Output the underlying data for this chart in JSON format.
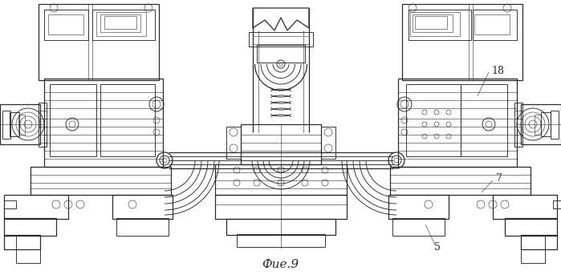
{
  "title": "Фие.9",
  "title_fontstyle": "italic",
  "title_fontsize": 11,
  "background_color": "#ffffff",
  "line_color": "#2a2a2a",
  "figwidth": 6.99,
  "figheight": 3.48,
  "dpi": 100,
  "label_18": "18",
  "label_7": "7",
  "label_5": "5"
}
